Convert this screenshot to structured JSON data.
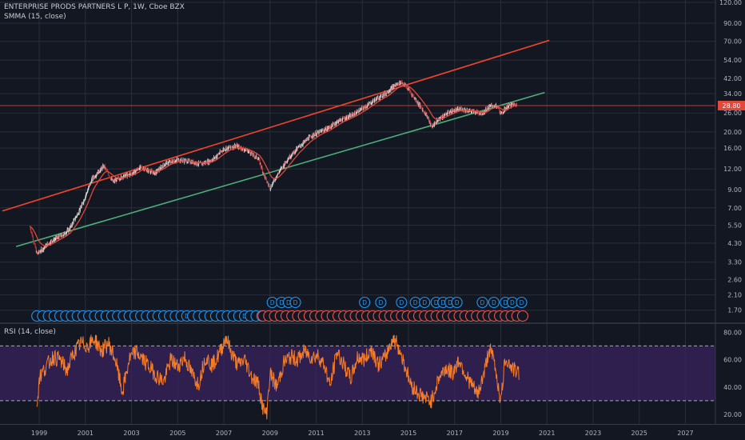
{
  "symbol_title": "ENTERPRISE PRODS PARTNERS L P, 1W, Cboe BZX",
  "indicator_smma": "SMMA (15, close)",
  "indicator_rsi": "RSI (14, close)",
  "colors": {
    "background": "#131722",
    "grid": "#2a2e39",
    "candle_up": "#d9d9d9",
    "candle_down": "#b23a3a",
    "smma": "#e0493c",
    "upper_trend": "#f1452b",
    "lower_trend": "#4caf7a",
    "hline": "#e0493c",
    "price_label_bg": "#e0493c",
    "rsi_line": "#f57c28",
    "rsi_band": "#3b2361",
    "dividend": "#2196f3",
    "earnings": "#ef5350"
  },
  "chart_data": [
    {
      "type": "candlestick",
      "title": "ENTERPRISE PRODS PARTNERS L P, 1W, Cboe BZX",
      "y_scale": "log",
      "ylim": [
        1.5,
        120
      ],
      "y_ticks": [
        "120.00",
        "90.00",
        "70.00",
        "54.00",
        "42.00",
        "34.00",
        "26.00",
        "20.00",
        "16.00",
        "12.00",
        "9.00",
        "7.00",
        "5.50",
        "4.30",
        "3.30",
        "2.60",
        "2.10",
        "1.70"
      ],
      "x_ticks": [
        "1999",
        "2001",
        "2003",
        "2005",
        "2007",
        "2009",
        "2011",
        "2013",
        "2015",
        "2017",
        "2019",
        "2021",
        "2023",
        "2025",
        "2027"
      ],
      "xlim": [
        1997.3,
        2028.3
      ],
      "last_price": "28.80",
      "price_path": [
        {
          "x": 1998.6,
          "y": 5.4
        },
        {
          "x": 1998.9,
          "y": 3.7
        },
        {
          "x": 1999.5,
          "y": 4.4
        },
        {
          "x": 2000.0,
          "y": 4.8
        },
        {
          "x": 2000.3,
          "y": 5.2
        },
        {
          "x": 2000.8,
          "y": 7.0
        },
        {
          "x": 2001.3,
          "y": 10.5
        },
        {
          "x": 2001.8,
          "y": 12.5
        },
        {
          "x": 2002.2,
          "y": 10.0
        },
        {
          "x": 2002.6,
          "y": 10.8
        },
        {
          "x": 2003.0,
          "y": 11.2
        },
        {
          "x": 2003.4,
          "y": 12.3
        },
        {
          "x": 2004.0,
          "y": 11.3
        },
        {
          "x": 2004.5,
          "y": 13.0
        },
        {
          "x": 2005.0,
          "y": 13.6
        },
        {
          "x": 2005.5,
          "y": 13.3
        },
        {
          "x": 2006.0,
          "y": 12.8
        },
        {
          "x": 2006.5,
          "y": 13.6
        },
        {
          "x": 2007.0,
          "y": 15.8
        },
        {
          "x": 2007.5,
          "y": 16.5
        },
        {
          "x": 2008.0,
          "y": 15.5
        },
        {
          "x": 2008.5,
          "y": 13.8
        },
        {
          "x": 2008.8,
          "y": 10.5
        },
        {
          "x": 2009.0,
          "y": 9.2
        },
        {
          "x": 2009.3,
          "y": 11.0
        },
        {
          "x": 2009.8,
          "y": 14.0
        },
        {
          "x": 2010.3,
          "y": 16.5
        },
        {
          "x": 2010.8,
          "y": 19.0
        },
        {
          "x": 2011.5,
          "y": 21.0
        },
        {
          "x": 2012.0,
          "y": 23.5
        },
        {
          "x": 2012.5,
          "y": 25.0
        },
        {
          "x": 2013.0,
          "y": 27.5
        },
        {
          "x": 2013.5,
          "y": 31.0
        },
        {
          "x": 2014.0,
          "y": 34.0
        },
        {
          "x": 2014.4,
          "y": 38.0
        },
        {
          "x": 2014.7,
          "y": 40.0
        },
        {
          "x": 2015.0,
          "y": 36.0
        },
        {
          "x": 2015.4,
          "y": 30.0
        },
        {
          "x": 2015.8,
          "y": 25.0
        },
        {
          "x": 2016.0,
          "y": 21.5
        },
        {
          "x": 2016.4,
          "y": 24.5
        },
        {
          "x": 2016.8,
          "y": 26.5
        },
        {
          "x": 2017.3,
          "y": 27.5
        },
        {
          "x": 2017.8,
          "y": 26.5
        },
        {
          "x": 2018.2,
          "y": 26.0
        },
        {
          "x": 2018.6,
          "y": 29.0
        },
        {
          "x": 2018.9,
          "y": 28.0
        },
        {
          "x": 2019.0,
          "y": 25.5
        },
        {
          "x": 2019.3,
          "y": 28.5
        },
        {
          "x": 2019.5,
          "y": 29.5
        },
        {
          "x": 2019.7,
          "y": 28.8
        }
      ],
      "trendlines": [
        {
          "name": "upper",
          "from": {
            "x": 1997.4,
            "y": 6.7
          },
          "to": {
            "x": 2021.1,
            "y": 71.0
          }
        },
        {
          "name": "lower",
          "from": {
            "x": 1998.0,
            "y": 4.1
          },
          "to": {
            "x": 2020.9,
            "y": 34.5
          }
        }
      ],
      "horizontal_line": {
        "y": 28.8
      },
      "events": {
        "row1": [
          {
            "x": 2009.1,
            "label": "D"
          },
          {
            "x": 2009.5,
            "label": "D"
          },
          {
            "x": 2009.8,
            "label": "D"
          },
          {
            "x": 2010.1,
            "label": "D"
          },
          {
            "x": 2013.1,
            "label": "D"
          },
          {
            "x": 2013.8,
            "label": "D"
          },
          {
            "x": 2014.7,
            "label": "D"
          },
          {
            "x": 2015.3,
            "label": "D"
          },
          {
            "x": 2015.7,
            "label": "D"
          },
          {
            "x": 2016.2,
            "label": "D"
          },
          {
            "x": 2016.5,
            "label": "D"
          },
          {
            "x": 2016.8,
            "label": "D"
          },
          {
            "x": 2017.1,
            "label": "D"
          },
          {
            "x": 2018.2,
            "label": "D"
          },
          {
            "x": 2018.7,
            "label": "D"
          },
          {
            "x": 2019.2,
            "label": "D"
          },
          {
            "x": 2019.5,
            "label": "D"
          },
          {
            "x": 2019.9,
            "label": "D"
          }
        ],
        "row2_dividends_start": 1998.9,
        "row2_dividends_end": 2008.7,
        "row2_earnings_start": 2008.7,
        "row2_earnings_end": 2020.0,
        "row2_step": 0.25,
        "row2_labels": [
          {
            "x": 2000.1,
            "label": "D"
          },
          {
            "x": 2005.4,
            "label": "D"
          },
          {
            "x": 2006.6,
            "label": "D"
          },
          {
            "x": 2007.9,
            "label": "D"
          },
          {
            "x": 2009.1,
            "label": "E"
          },
          {
            "x": 2009.8,
            "label": "E"
          },
          {
            "x": 2010.3,
            "label": "E"
          },
          {
            "x": 2010.8,
            "label": "E"
          },
          {
            "x": 2014.3,
            "label": "E"
          },
          {
            "x": 2016.1,
            "label": "E"
          },
          {
            "x": 2017.1,
            "label": "E"
          },
          {
            "x": 2019.6,
            "label": "E"
          }
        ]
      }
    },
    {
      "type": "line",
      "title": "RSI (14, close)",
      "ylim": [
        13,
        86
      ],
      "y_ticks": [
        "80.00",
        "60.00",
        "40.00",
        "20.00"
      ],
      "bands": {
        "upper": 70,
        "lower": 30
      },
      "series": [
        {
          "values_x_y": [
            [
              1998.9,
              25
            ],
            [
              1999.0,
              47
            ],
            [
              1999.3,
              55
            ],
            [
              1999.6,
              62
            ],
            [
              1999.9,
              60
            ],
            [
              2000.2,
              52
            ],
            [
              2000.5,
              65
            ],
            [
              2000.8,
              72
            ],
            [
              2001.1,
              70
            ],
            [
              2001.4,
              75
            ],
            [
              2001.7,
              66
            ],
            [
              2002.0,
              72
            ],
            [
              2002.3,
              60
            ],
            [
              2002.6,
              36
            ],
            [
              2002.9,
              60
            ],
            [
              2003.2,
              66
            ],
            [
              2003.5,
              60
            ],
            [
              2003.8,
              54
            ],
            [
              2004.1,
              48
            ],
            [
              2004.4,
              44
            ],
            [
              2004.7,
              60
            ],
            [
              2005.0,
              55
            ],
            [
              2005.3,
              62
            ],
            [
              2005.6,
              50
            ],
            [
              2005.9,
              42
            ],
            [
              2006.2,
              62
            ],
            [
              2006.5,
              56
            ],
            [
              2006.8,
              64
            ],
            [
              2007.1,
              77
            ],
            [
              2007.3,
              66
            ],
            [
              2007.6,
              56
            ],
            [
              2007.9,
              60
            ],
            [
              2008.2,
              48
            ],
            [
              2008.5,
              42
            ],
            [
              2008.7,
              24
            ],
            [
              2008.85,
              20
            ],
            [
              2009.0,
              50
            ],
            [
              2009.3,
              40
            ],
            [
              2009.6,
              58
            ],
            [
              2009.9,
              62
            ],
            [
              2010.2,
              60
            ],
            [
              2010.5,
              66
            ],
            [
              2010.8,
              62
            ],
            [
              2011.1,
              63
            ],
            [
              2011.4,
              54
            ],
            [
              2011.6,
              40
            ],
            [
              2011.9,
              66
            ],
            [
              2012.2,
              56
            ],
            [
              2012.5,
              46
            ],
            [
              2012.8,
              62
            ],
            [
              2013.1,
              60
            ],
            [
              2013.4,
              68
            ],
            [
              2013.7,
              56
            ],
            [
              2014.0,
              62
            ],
            [
              2014.3,
              75
            ],
            [
              2014.5,
              72
            ],
            [
              2014.8,
              58
            ],
            [
              2015.1,
              42
            ],
            [
              2015.4,
              36
            ],
            [
              2015.7,
              32
            ],
            [
              2016.0,
              30
            ],
            [
              2016.3,
              46
            ],
            [
              2016.6,
              54
            ],
            [
              2016.9,
              50
            ],
            [
              2017.2,
              60
            ],
            [
              2017.5,
              48
            ],
            [
              2017.8,
              40
            ],
            [
              2018.0,
              34
            ],
            [
              2018.3,
              52
            ],
            [
              2018.5,
              68
            ],
            [
              2018.7,
              60
            ],
            [
              2018.9,
              40
            ],
            [
              2019.0,
              29
            ],
            [
              2019.2,
              62
            ],
            [
              2019.4,
              56
            ],
            [
              2019.6,
              52
            ],
            [
              2019.8,
              50
            ]
          ]
        }
      ]
    }
  ]
}
